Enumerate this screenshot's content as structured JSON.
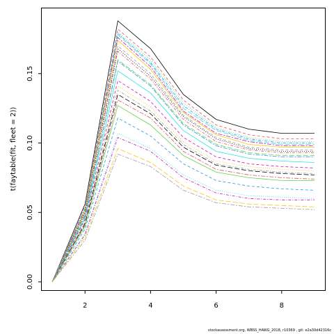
{
  "chart_data": {
    "type": "line",
    "title": "",
    "xlabel": "",
    "ylabel": "t(faytable(fit, fleet = 2))",
    "x": [
      1,
      2,
      3,
      4,
      5,
      6,
      7,
      8,
      9
    ],
    "xlim": [
      0.68,
      9.32
    ],
    "ylim": [
      -0.006,
      0.197
    ],
    "xticks": [
      "2",
      "4",
      "6",
      "8"
    ],
    "yticks": [
      "0.00",
      "0.05",
      "0.10",
      "0.15"
    ],
    "grid": false,
    "legend": "none",
    "line_colors": [
      "#000000",
      "#DF536B",
      "#61D04F",
      "#2297E6",
      "#28E2E5",
      "#CD0BBC",
      "#F5C710",
      "#9E9E9E"
    ],
    "line_styles": [
      "solid",
      "dashed",
      "dotted",
      "dotdash",
      "longdash",
      "twodash"
    ],
    "series": [
      {
        "values": [
          0.0,
          0.056,
          0.188,
          0.168,
          0.135,
          0.117,
          0.11,
          0.107,
          0.107
        ]
      },
      {
        "values": [
          0.0,
          0.055,
          0.182,
          0.162,
          0.131,
          0.113,
          0.106,
          0.103,
          0.103
        ]
      },
      {
        "values": [
          0.0,
          0.054,
          0.18,
          0.16,
          0.129,
          0.111,
          0.104,
          0.101,
          0.101
        ]
      },
      {
        "values": [
          0.0,
          0.053,
          0.179,
          0.158,
          0.127,
          0.11,
          0.103,
          0.1,
          0.1
        ]
      },
      {
        "values": [
          0.0,
          0.053,
          0.178,
          0.157,
          0.125,
          0.109,
          0.102,
          0.099,
          0.099
        ]
      },
      {
        "values": [
          0.0,
          0.052,
          0.176,
          0.155,
          0.123,
          0.107,
          0.101,
          0.098,
          0.098
        ]
      },
      {
        "values": [
          0.0,
          0.051,
          0.174,
          0.153,
          0.122,
          0.106,
          0.099,
          0.097,
          0.097
        ]
      },
      {
        "values": [
          0.0,
          0.05,
          0.17,
          0.15,
          0.12,
          0.104,
          0.097,
          0.095,
          0.095
        ]
      },
      {
        "values": [
          0.0,
          0.05,
          0.168,
          0.148,
          0.119,
          0.103,
          0.096,
          0.094,
          0.094
        ]
      },
      {
        "values": [
          0.0,
          0.049,
          0.166,
          0.146,
          0.117,
          0.101,
          0.095,
          0.093,
          0.093
        ]
      },
      {
        "values": [
          0.0,
          0.048,
          0.16,
          0.142,
          0.114,
          0.099,
          0.093,
          0.091,
          0.091
        ]
      },
      {
        "values": [
          0.0,
          0.047,
          0.159,
          0.141,
          0.113,
          0.098,
          0.092,
          0.09,
          0.09
        ]
      },
      {
        "values": [
          0.0,
          0.046,
          0.152,
          0.136,
          0.109,
          0.094,
          0.089,
          0.087,
          0.086
        ]
      },
      {
        "values": [
          0.0,
          0.045,
          0.145,
          0.13,
          0.104,
          0.09,
          0.085,
          0.083,
          0.082
        ]
      },
      {
        "values": [
          0.0,
          0.044,
          0.141,
          0.126,
          0.101,
          0.087,
          0.083,
          0.081,
          0.08
        ]
      },
      {
        "values": [
          0.0,
          0.043,
          0.138,
          0.123,
          0.099,
          0.085,
          0.081,
          0.079,
          0.078
        ]
      },
      {
        "values": [
          0.0,
          0.042,
          0.135,
          0.121,
          0.097,
          0.084,
          0.08,
          0.078,
          0.077
        ]
      },
      {
        "values": [
          0.0,
          0.041,
          0.131,
          0.118,
          0.094,
          0.081,
          0.077,
          0.075,
          0.074
        ]
      },
      {
        "values": [
          0.0,
          0.04,
          0.127,
          0.113,
          0.091,
          0.079,
          0.075,
          0.073,
          0.073
        ]
      },
      {
        "values": [
          0.0,
          0.038,
          0.118,
          0.105,
          0.085,
          0.073,
          0.069,
          0.067,
          0.066
        ]
      },
      {
        "values": [
          0.0,
          0.035,
          0.107,
          0.096,
          0.077,
          0.066,
          0.062,
          0.061,
          0.06
        ]
      },
      {
        "values": [
          0.0,
          0.034,
          0.104,
          0.094,
          0.075,
          0.064,
          0.06,
          0.059,
          0.059
        ]
      },
      {
        "values": [
          0.0,
          0.032,
          0.096,
          0.086,
          0.069,
          0.059,
          0.056,
          0.055,
          0.054
        ]
      },
      {
        "values": [
          0.0,
          0.03,
          0.092,
          0.083,
          0.066,
          0.057,
          0.054,
          0.053,
          0.052
        ]
      }
    ]
  },
  "footer": "stockassessment.org, WBSS_HAWG_2018, r10369 , git: e2a30d42316c"
}
